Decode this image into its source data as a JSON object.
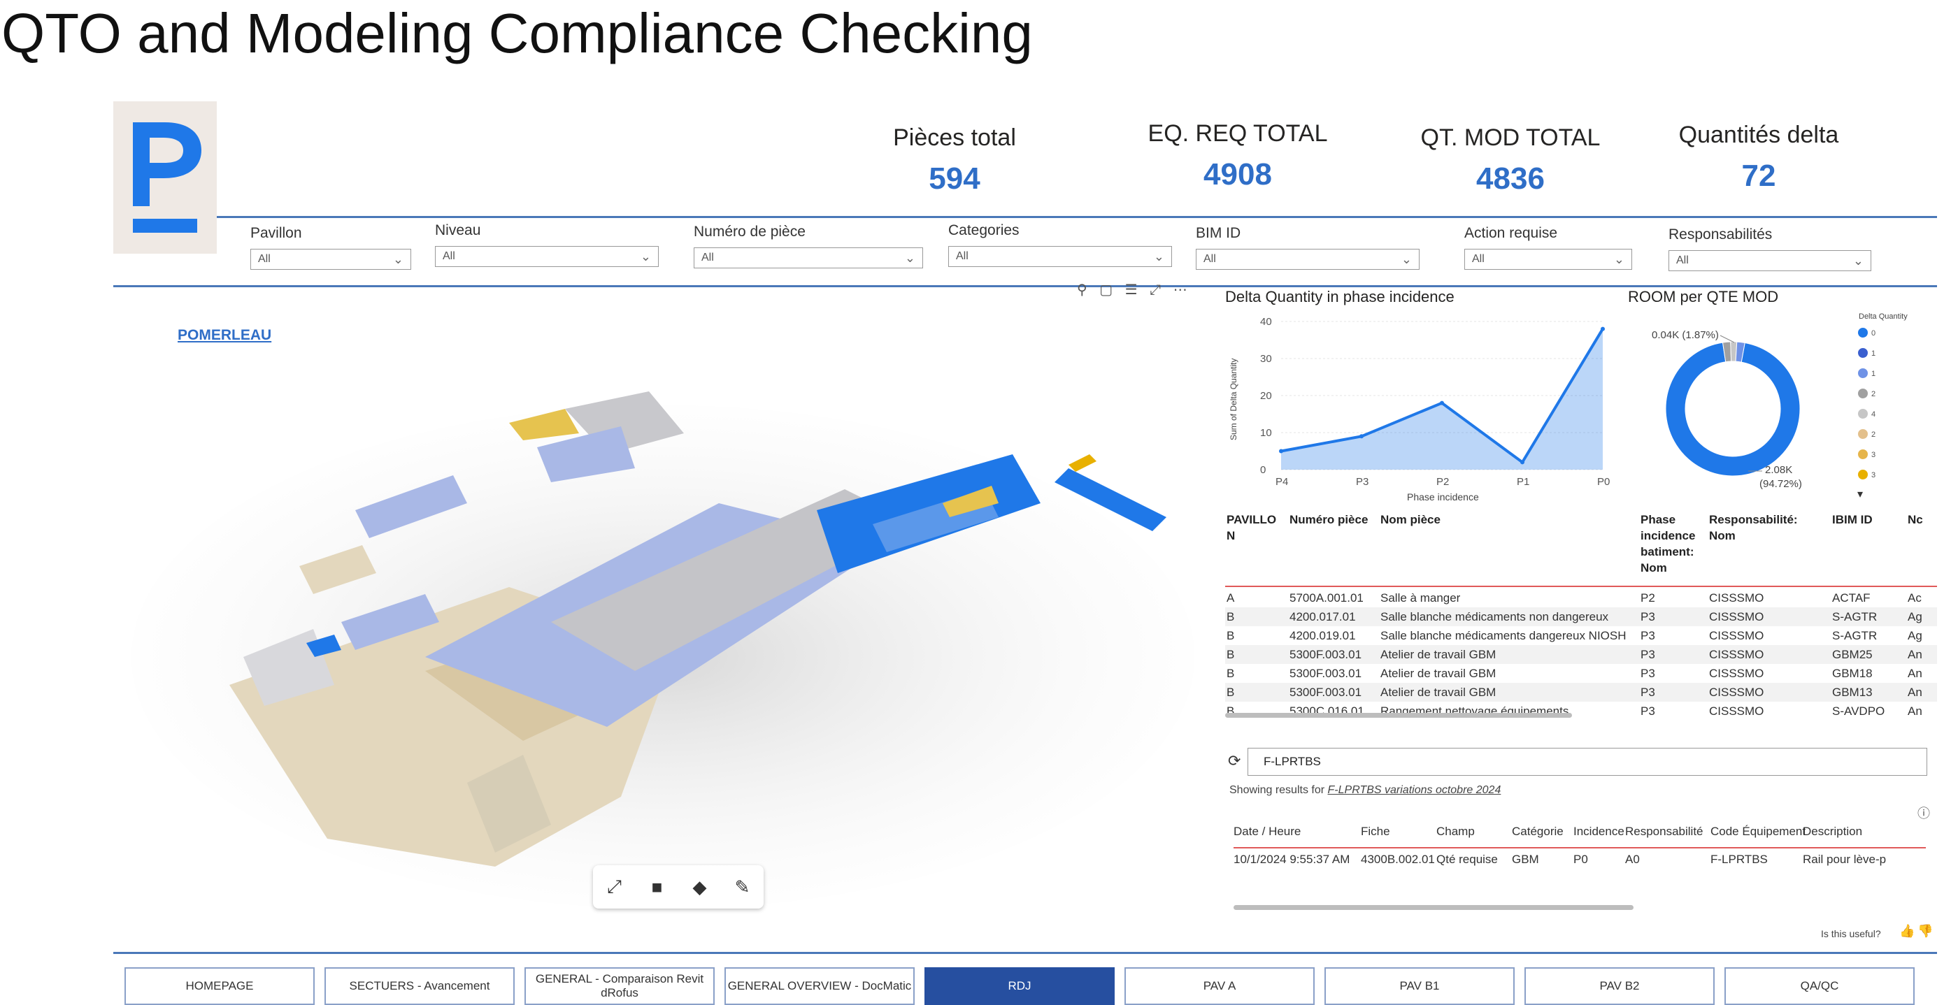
{
  "slide_title": "QTO and Modeling Compliance Checking",
  "kpis": [
    {
      "label": "Pièces total",
      "value": "594"
    },
    {
      "label": "EQ. REQ TOTAL",
      "value": "4908"
    },
    {
      "label": "QT. MOD TOTAL",
      "value": "4836"
    },
    {
      "label": "Quantités delta",
      "value": "72"
    }
  ],
  "filters": [
    {
      "label": "Pavillon",
      "value": "All"
    },
    {
      "label": "Niveau",
      "value": "All"
    },
    {
      "label": "Numéro de pièce",
      "value": "All"
    },
    {
      "label": "Categories",
      "value": "All"
    },
    {
      "label": "BIM ID",
      "value": "All"
    },
    {
      "label": "Action requise",
      "value": "All"
    },
    {
      "label": "Responsabilités",
      "value": "All"
    }
  ],
  "viewer": {
    "brand": "POMERLEAU"
  },
  "line_chart": {
    "title": "Delta Quantity in phase incidence",
    "ylabel": "Sum of Delta Quantity",
    "xlabel": "Phase incidence",
    "categories": [
      "P4",
      "P3",
      "P2",
      "P1",
      "P0"
    ],
    "values": [
      5,
      9,
      18,
      2,
      38
    ],
    "yticks": [
      "0",
      "10",
      "20",
      "30",
      "40"
    ],
    "ylim": [
      0,
      40
    ],
    "color": "#1f78e8"
  },
  "donut": {
    "title": "ROOM per QTE MOD",
    "label_small": "0.04K (1.87%)",
    "label_big_line1": "2.08K",
    "label_big_line2": "(94.72%)",
    "legend_title": "Delta Quantity",
    "legend": [
      {
        "label": "0",
        "color": "#1f78e8"
      },
      {
        "label": "1",
        "color": "#3a5fcf"
      },
      {
        "label": "1",
        "color": "#6f92e6"
      },
      {
        "label": "2",
        "color": "#a0a0a0"
      },
      {
        "label": "4",
        "color": "#c6c6c6"
      },
      {
        "label": "2",
        "color": "#e3c08c"
      },
      {
        "label": "3",
        "color": "#e6b54b"
      },
      {
        "label": "3",
        "color": "#e8b000"
      }
    ],
    "slices": [
      {
        "value": 94.72,
        "color": "#1f78e8"
      },
      {
        "value": 1.87,
        "color": "#a0a0a0"
      },
      {
        "value": 1.5,
        "color": "#c6c6c6"
      },
      {
        "value": 1.91,
        "color": "#6f92e6"
      }
    ]
  },
  "rooms_table": {
    "headers": [
      "PAVILLO N",
      "Numéro pièce",
      "Nom pièce",
      "Phase incidence batiment: Nom",
      "Responsabilité: Nom",
      "IBIM ID",
      "Nc"
    ],
    "rows": [
      [
        "A",
        "5700A.001.01",
        "Salle à manger",
        "P2",
        "CISSSMO",
        "ACTAF",
        "Ac"
      ],
      [
        "B",
        "4200.017.01",
        "Salle blanche médicaments non dangereux",
        "P3",
        "CISSSMO",
        "S-AGTR",
        "Ag"
      ],
      [
        "B",
        "4200.019.01",
        "Salle blanche médicaments dangereux NIOSH",
        "P3",
        "CISSSMO",
        "S-AGTR",
        "Ag"
      ],
      [
        "B",
        "5300F.003.01",
        "Atelier de travail GBM",
        "P3",
        "CISSSMO",
        "GBM25",
        "An"
      ],
      [
        "B",
        "5300F.003.01",
        "Atelier de travail GBM",
        "P3",
        "CISSSMO",
        "GBM18",
        "An"
      ],
      [
        "B",
        "5300F.003.01",
        "Atelier de travail GBM",
        "P3",
        "CISSSMO",
        "GBM13",
        "An"
      ],
      [
        "B",
        "5300C.016.01",
        "Rangement nettoyage équipements",
        "P3",
        "CISSSMO",
        "S-AVDPO",
        "An"
      ]
    ]
  },
  "qa": {
    "query": "F-LPRTBS",
    "showing_prefix": "Showing results for",
    "showing_link": "F-LPRTBS variations octobre 2024",
    "headers": [
      "Date / Heure",
      "Fiche",
      "Champ",
      "Catégorie",
      "Incidence",
      "Responsabilité",
      "Code Équipement",
      "Description"
    ],
    "rows": [
      [
        "10/1/2024 9:55:37 AM",
        "4300B.002.01",
        "Qté requise",
        "GBM",
        "P0",
        "A0",
        "F-LPRTBS",
        "Rail pour lève-p"
      ]
    ],
    "useful": "Is this useful?"
  },
  "nav": [
    {
      "label": "HOMEPAGE",
      "active": false
    },
    {
      "label": "SECTUERS - Avancement",
      "active": false
    },
    {
      "label": "GENERAL - Comparaison Revit dRofus",
      "active": false
    },
    {
      "label": "GENERAL OVERVIEW - DocMatic",
      "active": false
    },
    {
      "label": "RDJ",
      "active": true
    },
    {
      "label": "PAV A",
      "active": false
    },
    {
      "label": "PAV B1",
      "active": false
    },
    {
      "label": "PAV B2",
      "active": false
    },
    {
      "label": "QA/QC",
      "active": false
    }
  ]
}
